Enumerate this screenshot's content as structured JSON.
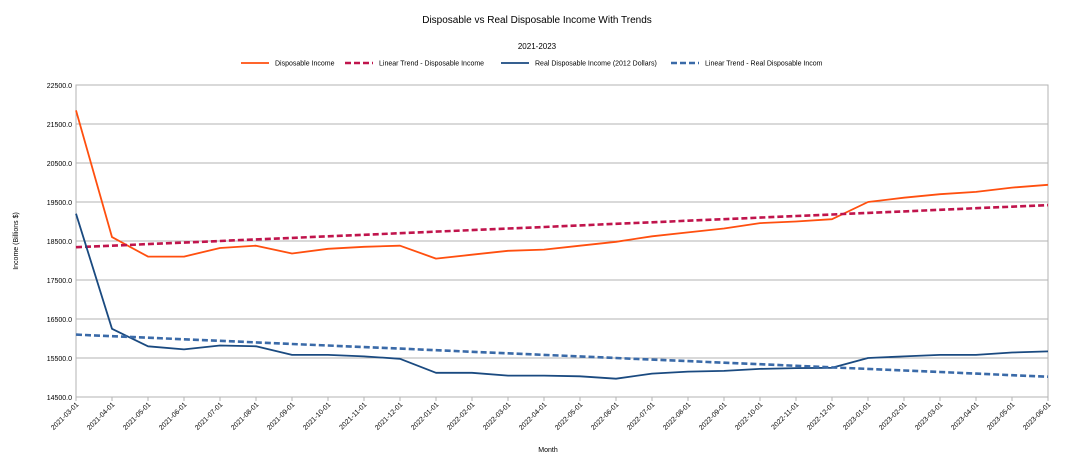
{
  "chart_data": {
    "type": "line",
    "title": "Disposable vs Real Disposable Income With Trends",
    "subtitle": "2021-2023",
    "xlabel": "Month",
    "ylabel": "Income (Billions $)",
    "ylim": [
      14500,
      22500
    ],
    "ytick_step": 1000,
    "yticks": [
      "14500.0",
      "15500.0",
      "16500.0",
      "17500.0",
      "18500.0",
      "19500.0",
      "20500.0",
      "21500.0",
      "22500.0"
    ],
    "grid": "horizontal",
    "legend_position": "top",
    "categories": [
      "2021-03-01",
      "2021-04-01",
      "2021-05-01",
      "2021-06-01",
      "2021-07-01",
      "2021-08-01",
      "2021-09-01",
      "2021-10-01",
      "2021-11-01",
      "2021-12-01",
      "2022-01-01",
      "2022-02-01",
      "2022-03-01",
      "2022-04-01",
      "2022-05-01",
      "2022-06-01",
      "2022-07-01",
      "2022-08-01",
      "2022-09-01",
      "2022-10-01",
      "2022-11-01",
      "2022-12-01",
      "2023-01-01",
      "2023-02-01",
      "2023-03-01",
      "2023-04-01",
      "2023-05-01",
      "2023-06-01"
    ],
    "series": [
      {
        "name": "Disposable Income",
        "color": "#ff4f0f",
        "style": "solid",
        "values": [
          21850,
          18600,
          18100,
          18100,
          18320,
          18380,
          18180,
          18300,
          18350,
          18380,
          18050,
          18150,
          18250,
          18280,
          18380,
          18480,
          18620,
          18720,
          18820,
          18960,
          19000,
          19060,
          19500,
          19610,
          19700,
          19760,
          19870,
          19940
        ]
      },
      {
        "name": "Linear Trend - Disposable Income",
        "color": "#c0144c",
        "style": "dashed",
        "values": [
          18340,
          18380,
          18420,
          18460,
          18500,
          18540,
          18580,
          18620,
          18660,
          18700,
          18740,
          18780,
          18820,
          18860,
          18900,
          18940,
          18980,
          19020,
          19060,
          19100,
          19140,
          19180,
          19220,
          19260,
          19300,
          19340,
          19380,
          19420
        ]
      },
      {
        "name": "Real Disposable Income (2012 Dollars)",
        "color": "#1a4a80",
        "style": "solid",
        "values": [
          19200,
          16250,
          15800,
          15720,
          15820,
          15800,
          15580,
          15580,
          15540,
          15480,
          15120,
          15120,
          15050,
          15050,
          15030,
          14970,
          15100,
          15150,
          15170,
          15220,
          15240,
          15250,
          15500,
          15540,
          15580,
          15580,
          15640,
          15670
        ]
      },
      {
        "name": "Linear Trend - Real Disposable Incom",
        "color": "#3a6aa8",
        "style": "dashed",
        "values": [
          16100,
          16060,
          16020,
          15980,
          15940,
          15900,
          15860,
          15820,
          15780,
          15740,
          15700,
          15660,
          15620,
          15580,
          15540,
          15500,
          15460,
          15420,
          15380,
          15340,
          15300,
          15260,
          15220,
          15180,
          15140,
          15100,
          15060,
          15020
        ]
      }
    ]
  }
}
